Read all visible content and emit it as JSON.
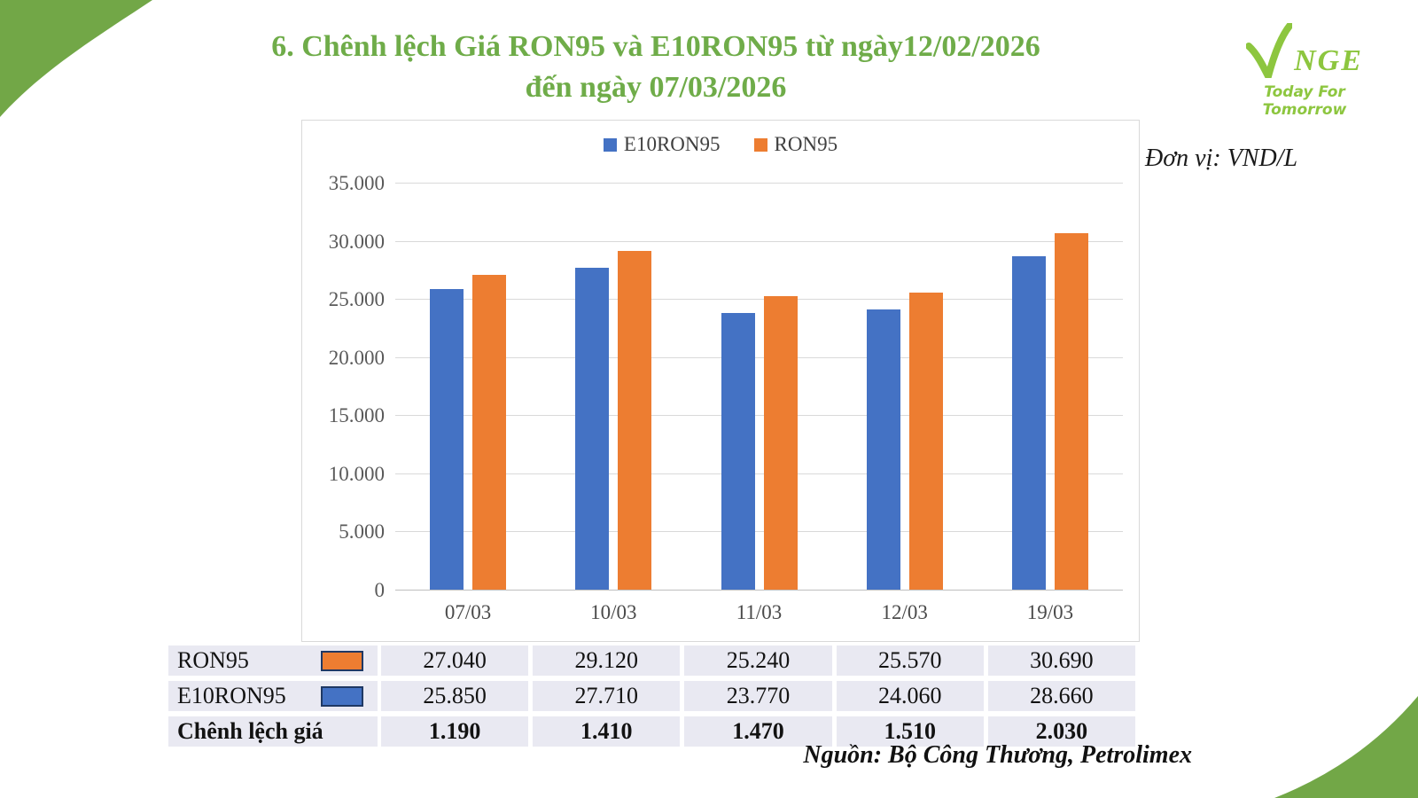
{
  "title": {
    "line1": "6. Chênh lệch Giá RON95 và E10RON95 từ ngày12/02/2026",
    "line2": "đến ngày 07/03/2026"
  },
  "logo": {
    "brand_rest": "NGE",
    "tagline": "Today For Tomorrow"
  },
  "unit_label": "Đơn vị: VND/L",
  "source_label": "Nguồn: Bộ Công Thương, Petrolimex",
  "colors": {
    "e10ron95": "#4472c4",
    "ron95": "#ed7d31",
    "title_green": "#6fac49",
    "corner_green": "#72a747",
    "logo_green": "#8dc63f",
    "grid": "#d9d9d9",
    "axis": "#bfbfbf",
    "table_bg": "#e9e9f2",
    "swatch_border": "#1f3864"
  },
  "chart_data": {
    "type": "bar",
    "categories": [
      "07/03",
      "10/03",
      "11/03",
      "12/03",
      "19/03"
    ],
    "series": [
      {
        "name": "E10RON95",
        "color_key": "e10ron95",
        "values": [
          25850,
          27710,
          23770,
          24060,
          28660
        ]
      },
      {
        "name": "RON95",
        "color_key": "ron95",
        "values": [
          27040,
          29120,
          25240,
          25570,
          30690
        ]
      }
    ],
    "ylim": [
      0,
      35000
    ],
    "ytick_step": 5000,
    "ytick_labels": [
      "0",
      "5.000",
      "10.000",
      "15.000",
      "20.000",
      "25.000",
      "30.000",
      "35.000"
    ],
    "legend_position": "top",
    "grid": "horizontal",
    "title": "",
    "xlabel": "",
    "ylabel": ""
  },
  "table": {
    "rows": [
      {
        "label": "RON95",
        "swatch": "ron95",
        "bold": false,
        "values": [
          "27.040",
          "29.120",
          "25.240",
          "25.570",
          "30.690"
        ]
      },
      {
        "label": "E10RON95",
        "swatch": "e10ron95",
        "bold": false,
        "values": [
          "25.850",
          "27.710",
          "23.770",
          "24.060",
          "28.660"
        ]
      },
      {
        "label": "Chênh lệch giá",
        "swatch": null,
        "bold": true,
        "values": [
          "1.190",
          "1.410",
          "1.470",
          "1.510",
          "2.030"
        ]
      }
    ]
  }
}
